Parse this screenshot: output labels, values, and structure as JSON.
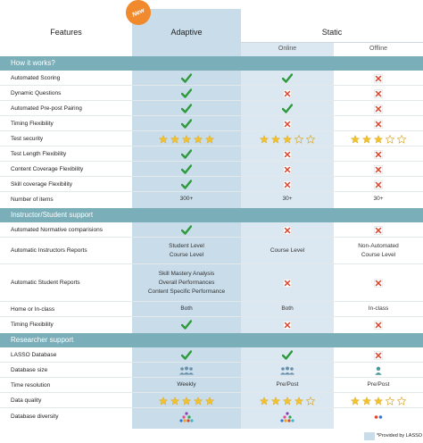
{
  "header": {
    "features": "Features",
    "adaptive": "Adaptive",
    "static": "Static",
    "online": "Online",
    "offline": "Offline",
    "new_badge": "New"
  },
  "colors": {
    "adaptive_bg": "#c8dcea",
    "online_bg": "#dbe8f2",
    "section_bg": "#7aaeb8",
    "check": "#2e9a3c",
    "cross": "#d9442c",
    "star": "#f2c12e",
    "badge": "#f08a2c"
  },
  "sections": {
    "how": "How it works?",
    "instructor": "Instructor/Student support",
    "researcher": "Researcher support"
  },
  "rows": {
    "r1": {
      "label": "Automated Scoring",
      "adaptive": "check",
      "online": "check",
      "offline": "cross"
    },
    "r2": {
      "label": "Dynamic Questions",
      "adaptive": "check",
      "online": "cross",
      "offline": "cross"
    },
    "r3": {
      "label": "Automated Pre-post Pairing",
      "adaptive": "check",
      "online": "check",
      "offline": "cross"
    },
    "r4": {
      "label": "Timing Flexibility",
      "adaptive": "check",
      "online": "cross",
      "offline": "cross"
    },
    "r5": {
      "label": "Test security",
      "adaptive_stars": 5,
      "online_stars": 3,
      "offline_stars": 3
    },
    "r6": {
      "label": "Test Length Flexibility",
      "adaptive": "check",
      "online": "cross",
      "offline": "cross"
    },
    "r7": {
      "label": "Content Coverage Flexibility",
      "adaptive": "check",
      "online": "cross",
      "offline": "cross"
    },
    "r8": {
      "label": "Skill coverage Flexibility",
      "adaptive": "check",
      "online": "cross",
      "offline": "cross"
    },
    "r9": {
      "label": "Number of items",
      "adaptive": "300+",
      "online": "30+",
      "offline": "30+"
    },
    "r10": {
      "label": "Automated Normative comparisions",
      "adaptive": "check",
      "online": "cross",
      "offline": "cross"
    },
    "r11": {
      "label": "Automatic Instructors Reports",
      "adaptive_1": "Student Level",
      "adaptive_2": "Course Level",
      "online": "Course Level",
      "offline_1": "Non-Automated",
      "offline_2": "Course Level"
    },
    "r12": {
      "label": "Automatic Student Reports",
      "adaptive_1": "Skill Mastery Analysis",
      "adaptive_2": "Overall Performances",
      "adaptive_3": "Content Specific Performance",
      "online": "cross",
      "offline": "cross"
    },
    "r13": {
      "label": "Home or In-class",
      "adaptive": "Both",
      "online": "Both",
      "offline": "In-class"
    },
    "r14": {
      "label": "Timing Flexibility",
      "adaptive": "check",
      "online": "cross",
      "offline": "cross"
    },
    "r15": {
      "label": "LASSO Database",
      "adaptive": "check",
      "online": "check",
      "offline": "cross"
    },
    "r16": {
      "label": "Database size",
      "adaptive": "people-group-icon",
      "online": "people-group-icon",
      "offline": "person-icon"
    },
    "r17": {
      "label": "Time resolution",
      "adaptive": "Weekly",
      "online": "Pre/Post",
      "offline": "Pre/Post"
    },
    "r18": {
      "label": "Data quality",
      "adaptive_stars": 5,
      "online_stars": 4,
      "offline_stars": 3
    },
    "r19": {
      "label": "Database diversity",
      "adaptive": "many-dots-icon",
      "online": "many-dots-icon",
      "offline": "two-dots-icon"
    }
  },
  "legend": "*Provided by LASSO"
}
